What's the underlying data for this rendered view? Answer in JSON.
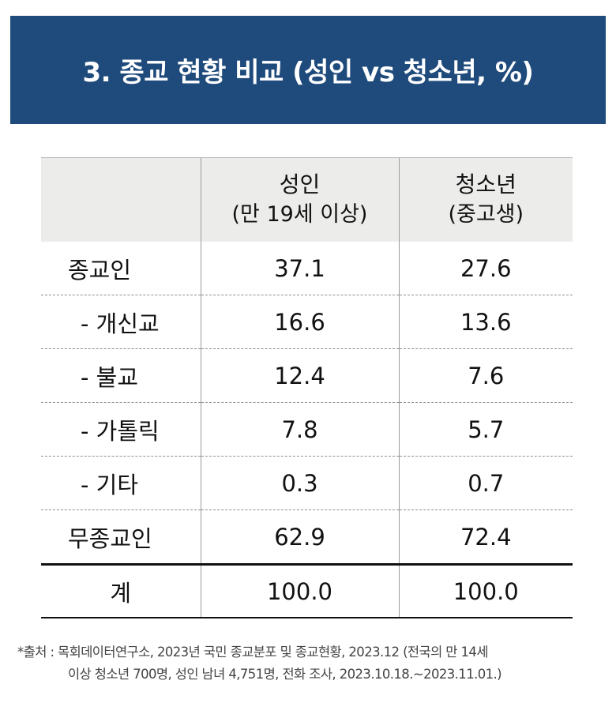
{
  "title": "3. 종교 현황 비교 (성인 vs 청소년, %)",
  "table": {
    "headers": [
      {
        "title": "",
        "sub": ""
      },
      {
        "title": "성인",
        "sub": "(만 19세 이상)"
      },
      {
        "title": "청소년",
        "sub": "(중고생)"
      }
    ],
    "rows": [
      {
        "label": "종교인",
        "adult": "37.1",
        "youth": "27.6"
      },
      {
        "label": "- 개신교",
        "adult": "16.6",
        "youth": "13.6"
      },
      {
        "label": "- 불교",
        "adult": "12.4",
        "youth": "7.6"
      },
      {
        "label": "- 가톨릭",
        "adult": "7.8",
        "youth": "5.7"
      },
      {
        "label": "- 기타",
        "adult": "0.3",
        "youth": "0.7"
      },
      {
        "label": "무종교인",
        "adult": "62.9",
        "youth": "72.4"
      }
    ],
    "total": {
      "label": "계",
      "adult": "100.0",
      "youth": "100.0"
    }
  },
  "source": {
    "line1": "*출처 : 목회데이터연구소, 2023년 국민 종교분포 및 종교현황, 2023.12 (전국의 만 14세",
    "line2": "이상 청소년 700명, 성인 남녀 4,751명, 전화 조사, 2023.10.18.~2023.11.01.)"
  },
  "colors": {
    "title_background": "#1f4b7c",
    "header_background": "#ececeb"
  }
}
